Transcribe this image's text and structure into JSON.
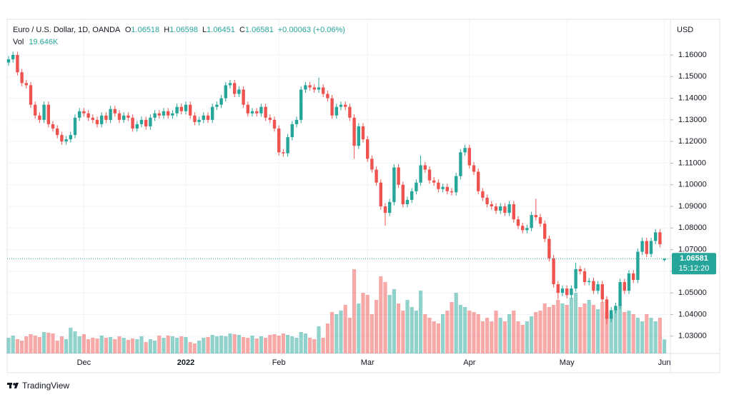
{
  "chart_data": {
    "type": "candlestick",
    "title": "Euro / U.S. Dollar, 1D, OANDA",
    "ohlc_labels": [
      "O",
      "H",
      "L",
      "C"
    ],
    "change": "+0.00063 (+0.06%)",
    "volume_name": "Vol",
    "volume_label": "19.646K",
    "currency": "USD",
    "countdown": "15:12:20",
    "brand": "TradingView",
    "up_color": "#26a69a",
    "down_color": "#ef5350",
    "grid": true,
    "ylim": [
      1.022,
      1.1765
    ],
    "yticks": [
      {
        "value": 1.03,
        "label": "1.03000"
      },
      {
        "value": 1.04,
        "label": "1.04000"
      },
      {
        "value": 1.05,
        "label": "1.05000"
      },
      {
        "value": 1.06,
        "label": "1.06000"
      },
      {
        "value": 1.07,
        "label": "1.07000"
      },
      {
        "value": 1.08,
        "label": "1.08000"
      },
      {
        "value": 1.09,
        "label": "1.09000"
      },
      {
        "value": 1.1,
        "label": "1.10000"
      },
      {
        "value": 1.11,
        "label": "1.11000"
      },
      {
        "value": 1.12,
        "label": "1.12000"
      },
      {
        "value": 1.13,
        "label": "1.13000"
      },
      {
        "value": 1.14,
        "label": "1.14000"
      },
      {
        "value": 1.15,
        "label": "1.15000"
      },
      {
        "value": 1.16,
        "label": "1.16000"
      }
    ],
    "xticks": [
      {
        "value": 17,
        "label": "Dec"
      },
      {
        "value": 40,
        "label": "2022"
      },
      {
        "value": 61,
        "label": "Feb"
      },
      {
        "value": 81,
        "label": "Mar"
      },
      {
        "value": 104,
        "label": "Apr"
      },
      {
        "value": 126,
        "label": "May"
      },
      {
        "value": 148,
        "label": "Jun"
      }
    ],
    "open": [
      1.1565,
      1.158,
      1.16,
      1.152,
      1.147,
      1.146,
      1.137,
      1.132,
      1.13,
      1.137,
      1.128,
      1.126,
      1.123,
      1.12,
      1.121,
      1.123,
      1.131,
      1.134,
      1.133,
      1.131,
      1.13,
      1.128,
      1.132,
      1.13,
      1.135,
      1.133,
      1.13,
      1.132,
      1.131,
      1.126,
      1.128,
      1.13,
      1.127,
      1.131,
      1.133,
      1.132,
      1.134,
      1.132,
      1.133,
      1.136,
      1.134,
      1.137,
      1.132,
      1.129,
      1.13,
      1.132,
      1.13,
      1.136,
      1.137,
      1.14,
      1.146,
      1.147,
      1.142,
      1.144,
      1.137,
      1.133,
      1.134,
      1.133,
      1.136,
      1.131,
      1.13,
      1.126,
      1.115,
      1.1145,
      1.122,
      1.128,
      1.13,
      1.144,
      1.146,
      1.145,
      1.144,
      1.145,
      1.142,
      1.14,
      1.132,
      1.136,
      1.137,
      1.136,
      1.131,
      1.118,
      1.127,
      1.121,
      1.112,
      1.107,
      1.101,
      1.09,
      1.087,
      1.092,
      1.108,
      1.1,
      1.091,
      1.093,
      1.097,
      1.101,
      1.109,
      1.107,
      1.102,
      1.101,
      1.098,
      1.099,
      1.097,
      1.0965,
      1.104,
      1.115,
      1.117,
      1.109,
      1.106,
      1.097,
      1.094,
      1.091,
      1.09,
      1.088,
      1.09,
      1.087,
      1.091,
      1.084,
      1.081,
      1.079,
      1.08,
      1.086,
      1.085,
      1.082,
      1.075,
      1.066,
      1.054,
      1.05,
      1.052,
      1.049,
      1.052,
      1.061,
      1.06,
      1.055,
      1.0555,
      1.051,
      1.054,
      1.047,
      1.038,
      1.042,
      1.044,
      1.055,
      1.051,
      1.059,
      1.056,
      1.069,
      1.074,
      1.068,
      1.074,
      1.078,
      1.06518
    ],
    "high": [
      1.1595,
      1.1615,
      1.1615,
      1.1535,
      1.1485,
      1.1475,
      1.1385,
      1.1335,
      1.1385,
      1.1385,
      1.1295,
      1.1275,
      1.1245,
      1.1225,
      1.1245,
      1.1325,
      1.1355,
      1.1355,
      1.1345,
      1.1325,
      1.1315,
      1.1335,
      1.1335,
      1.1365,
      1.1365,
      1.1345,
      1.1335,
      1.1335,
      1.1325,
      1.1295,
      1.1315,
      1.1315,
      1.1325,
      1.1345,
      1.1345,
      1.1355,
      1.1355,
      1.1345,
      1.1375,
      1.1375,
      1.1385,
      1.1385,
      1.1335,
      1.1315,
      1.1335,
      1.1335,
      1.1375,
      1.1385,
      1.1415,
      1.1475,
      1.1485,
      1.1485,
      1.1455,
      1.1455,
      1.1385,
      1.1355,
      1.1355,
      1.1375,
      1.1375,
      1.1325,
      1.1315,
      1.1275,
      1.1165,
      1.1235,
      1.1295,
      1.1315,
      1.1455,
      1.1475,
      1.1475,
      1.1465,
      1.1495,
      1.1465,
      1.1435,
      1.1415,
      1.1375,
      1.1385,
      1.1385,
      1.1375,
      1.1325,
      1.1285,
      1.1285,
      1.1225,
      1.1135,
      1.1085,
      1.1025,
      1.0915,
      1.0935,
      1.1095,
      1.1095,
      1.1015,
      1.0945,
      1.0985,
      1.1025,
      1.1135,
      1.1105,
      1.1085,
      1.1035,
      1.1025,
      1.1005,
      1.1005,
      1.0985,
      1.1055,
      1.1165,
      1.1185,
      1.1185,
      1.1105,
      1.1075,
      1.0985,
      1.0955,
      1.0925,
      1.0915,
      1.0915,
      1.0915,
      1.0925,
      1.0925,
      1.0855,
      1.0825,
      1.0815,
      1.0875,
      1.0935,
      1.0865,
      1.0835,
      1.0765,
      1.0675,
      1.0555,
      1.0535,
      1.0535,
      1.0535,
      1.064,
      1.0625,
      1.0615,
      1.057,
      1.057,
      1.0555,
      1.0555,
      1.0485,
      1.0435,
      1.0455,
      1.0565,
      1.0565,
      1.0605,
      1.0605,
      1.0705,
      1.0755,
      1.0755,
      1.0755,
      1.0795,
      1.0795,
      1.06598
    ],
    "low": [
      1.155,
      1.1565,
      1.1505,
      1.1455,
      1.1445,
      1.1355,
      1.1305,
      1.1285,
      1.1285,
      1.1265,
      1.1245,
      1.1215,
      1.1185,
      1.1185,
      1.1195,
      1.1215,
      1.1295,
      1.1315,
      1.1295,
      1.1285,
      1.1265,
      1.1265,
      1.1285,
      1.1285,
      1.1315,
      1.1285,
      1.1285,
      1.1295,
      1.1245,
      1.1245,
      1.1265,
      1.1255,
      1.1255,
      1.1295,
      1.1305,
      1.1305,
      1.1305,
      1.1305,
      1.1315,
      1.1325,
      1.1325,
      1.1305,
      1.1275,
      1.1275,
      1.1285,
      1.1285,
      1.1285,
      1.1345,
      1.1355,
      1.1385,
      1.1445,
      1.1405,
      1.1405,
      1.1355,
      1.1315,
      1.1315,
      1.1315,
      1.1315,
      1.1295,
      1.1285,
      1.1245,
      1.1135,
      1.113,
      1.113,
      1.1205,
      1.1265,
      1.1285,
      1.1425,
      1.1435,
      1.1425,
      1.1425,
      1.1405,
      1.1385,
      1.1305,
      1.1305,
      1.1345,
      1.1345,
      1.1295,
      1.112,
      1.1165,
      1.1195,
      1.1105,
      1.1055,
      1.0995,
      1.0885,
      1.081,
      1.0855,
      1.0905,
      1.0985,
      1.0895,
      1.0895,
      1.0915,
      1.0955,
      1.0995,
      1.1055,
      1.1005,
      1.0995,
      1.0965,
      1.0965,
      1.0955,
      1.095,
      1.095,
      1.1025,
      1.1135,
      1.1075,
      1.1045,
      1.0955,
      1.0925,
      1.0895,
      1.0885,
      1.0865,
      1.0865,
      1.0855,
      1.0855,
      1.0825,
      1.0795,
      1.0775,
      1.0775,
      1.0785,
      1.0835,
      1.0805,
      1.0735,
      1.0645,
      1.0525,
      1.047,
      1.0485,
      1.0475,
      1.0475,
      1.0505,
      1.0585,
      1.0535,
      1.0535,
      1.0495,
      1.0495,
      1.0455,
      1.0355,
      1.0365,
      1.0405,
      1.0425,
      1.0495,
      1.0495,
      1.0545,
      1.0545,
      1.0675,
      1.0665,
      1.0665,
      1.0725,
      1.071,
      1.06451
    ],
    "close": [
      1.158,
      1.16,
      1.152,
      1.147,
      1.146,
      1.137,
      1.132,
      1.13,
      1.137,
      1.128,
      1.126,
      1.123,
      1.12,
      1.121,
      1.123,
      1.131,
      1.134,
      1.133,
      1.131,
      1.13,
      1.128,
      1.132,
      1.13,
      1.135,
      1.133,
      1.13,
      1.132,
      1.131,
      1.126,
      1.128,
      1.13,
      1.127,
      1.131,
      1.133,
      1.132,
      1.134,
      1.132,
      1.133,
      1.136,
      1.134,
      1.137,
      1.132,
      1.129,
      1.13,
      1.132,
      1.13,
      1.136,
      1.137,
      1.14,
      1.146,
      1.147,
      1.142,
      1.144,
      1.137,
      1.133,
      1.134,
      1.133,
      1.136,
      1.131,
      1.13,
      1.126,
      1.115,
      1.1145,
      1.122,
      1.128,
      1.13,
      1.144,
      1.146,
      1.145,
      1.144,
      1.145,
      1.142,
      1.14,
      1.132,
      1.136,
      1.137,
      1.136,
      1.131,
      1.118,
      1.127,
      1.121,
      1.112,
      1.107,
      1.101,
      1.09,
      1.087,
      1.092,
      1.108,
      1.1,
      1.091,
      1.093,
      1.097,
      1.101,
      1.109,
      1.107,
      1.102,
      1.101,
      1.098,
      1.099,
      1.097,
      1.0965,
      1.104,
      1.115,
      1.117,
      1.109,
      1.106,
      1.097,
      1.094,
      1.091,
      1.09,
      1.088,
      1.09,
      1.087,
      1.091,
      1.084,
      1.081,
      1.079,
      1.08,
      1.086,
      1.085,
      1.082,
      1.075,
      1.066,
      1.054,
      1.05,
      1.052,
      1.049,
      1.052,
      1.061,
      1.06,
      1.055,
      1.0555,
      1.051,
      1.054,
      1.047,
      1.038,
      1.042,
      1.044,
      1.055,
      1.051,
      1.059,
      1.056,
      1.069,
      1.074,
      1.068,
      1.074,
      1.078,
      1.0725,
      1.06581
    ],
    "volume": [
      22000,
      25000,
      20000,
      18000,
      24000,
      27000,
      25000,
      23000,
      30000,
      29000,
      28000,
      18000,
      24000,
      20000,
      36000,
      31000,
      24000,
      27000,
      20000,
      22000,
      21000,
      25000,
      22000,
      23000,
      20000,
      24000,
      22000,
      19000,
      21000,
      20000,
      24000,
      16000,
      20000,
      18000,
      25000,
      22000,
      25000,
      24000,
      22000,
      24000,
      23000,
      16000,
      14000,
      18000,
      22000,
      23000,
      26000,
      24000,
      25000,
      24000,
      28000,
      27000,
      26000,
      23000,
      22000,
      25000,
      21000,
      24000,
      22000,
      26000,
      27000,
      25000,
      28000,
      26000,
      24000,
      22000,
      30000,
      28000,
      22000,
      20000,
      38000,
      22000,
      42000,
      58000,
      55000,
      60000,
      68000,
      50000,
      118000,
      70000,
      85000,
      82000,
      55000,
      75000,
      108000,
      100000,
      82000,
      90000,
      70000,
      60000,
      75000,
      65000,
      60000,
      88000,
      55000,
      50000,
      45000,
      42000,
      55000,
      60000,
      72000,
      85000,
      68000,
      65000,
      60000,
      58000,
      55000,
      45000,
      50000,
      45000,
      60000,
      50000,
      45000,
      55000,
      60000,
      45000,
      40000,
      45000,
      52000,
      58000,
      60000,
      70000,
      65000,
      68000,
      75000,
      70000,
      68000,
      78000,
      85000,
      65000,
      70000,
      75000,
      68000,
      62000,
      72000,
      60000,
      55000,
      62000,
      68000,
      58000,
      60000,
      55000,
      50000,
      45000,
      55000,
      50000,
      45000,
      50000,
      19646
    ]
  }
}
